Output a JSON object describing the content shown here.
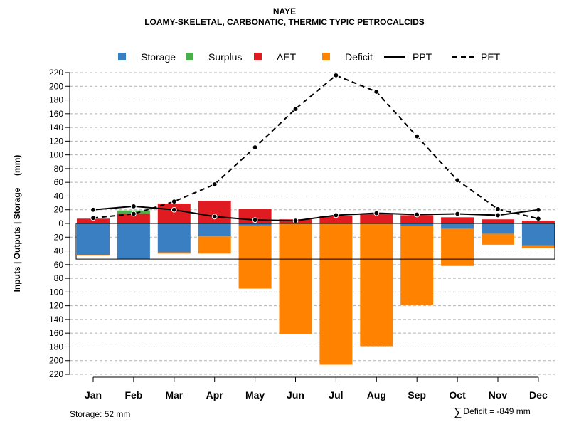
{
  "chart_data": {
    "type": "bar",
    "title": "NAYE",
    "subtitle": "LOAMY-SKELETAL, CARBONATIC, THERMIC TYPIC PETROCALCIDS",
    "ylabel": "Inputs | Outputs | Storage     (mm)",
    "xlabel": "",
    "ylim": [
      -220,
      220
    ],
    "y_ticks": [
      -220,
      -200,
      -180,
      -160,
      -140,
      -120,
      -100,
      -80,
      -60,
      -40,
      -20,
      0,
      20,
      40,
      60,
      80,
      100,
      120,
      140,
      160,
      180,
      200,
      220
    ],
    "y_tick_labels": [
      "220",
      "200",
      "180",
      "160",
      "140",
      "120",
      "100",
      "80",
      "60",
      "40",
      "20",
      "0",
      "20",
      "40",
      "60",
      "80",
      "100",
      "120",
      "140",
      "160",
      "180",
      "200",
      "220"
    ],
    "grid": true,
    "legend_position": "top",
    "categories": [
      "Jan",
      "Feb",
      "Mar",
      "Apr",
      "May",
      "Jun",
      "Jul",
      "Aug",
      "Sep",
      "Oct",
      "Nov",
      "Dec"
    ],
    "series": [
      {
        "name": "Storage",
        "kind": "bar",
        "color": "#3a7fc1",
        "values": [
          -46,
          -52,
          -42,
          -19,
          -3,
          0,
          0,
          0,
          -4,
          -8,
          -15,
          -32
        ]
      },
      {
        "name": "Surplus",
        "kind": "bar",
        "color": "#4aae4a",
        "values": [
          0,
          5,
          0,
          0,
          0,
          0,
          0,
          0,
          0,
          0,
          0,
          0
        ]
      },
      {
        "name": "AET",
        "kind": "bar",
        "color": "#e11b22",
        "values": [
          7,
          14,
          29,
          33,
          21,
          6,
          11,
          14,
          12,
          9,
          6,
          4
        ]
      },
      {
        "name": "Deficit",
        "kind": "bar",
        "color": "#ff8200",
        "values": [
          -1,
          0,
          -2,
          -25,
          -92,
          -161,
          -206,
          -179,
          -115,
          -54,
          -16,
          -4
        ]
      },
      {
        "name": "PPT",
        "kind": "line",
        "style": "solid",
        "color": "#000000",
        "values": [
          20,
          25,
          20,
          10,
          5,
          4,
          12,
          15,
          13,
          14,
          12,
          20
        ]
      },
      {
        "name": "PET",
        "kind": "line",
        "style": "dashed",
        "color": "#000000",
        "values": [
          8,
          14,
          32,
          57,
          111,
          167,
          216,
          192,
          127,
          63,
          21,
          7
        ]
      }
    ],
    "storage_capacity": -52,
    "footer_storage": "Storage: 52 mm",
    "footer_deficit": "Deficit = -849 mm"
  }
}
